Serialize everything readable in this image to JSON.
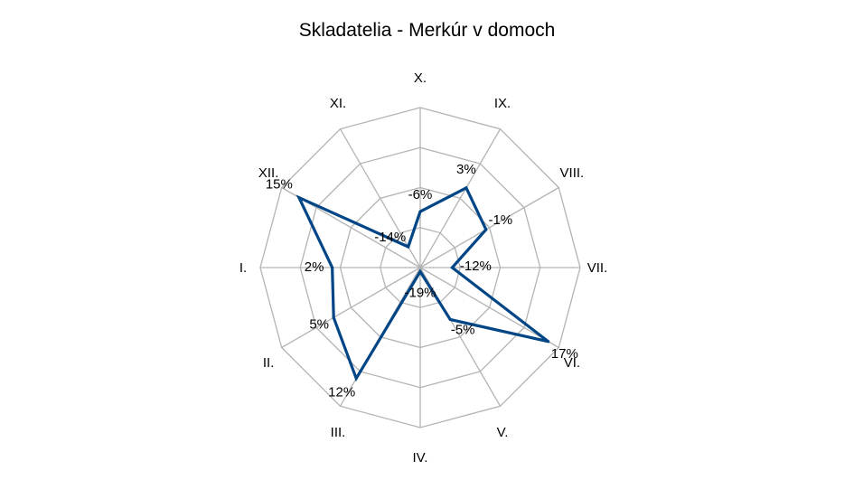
{
  "chart_data": {
    "type": "radar",
    "title": "Skladatelia - Merkúr v domoch",
    "categories": [
      "X.",
      "IX.",
      "VIII.",
      "VII.",
      "VI.",
      "V.",
      "IV.",
      "III.",
      "II.",
      "I.",
      "XII.",
      "XI."
    ],
    "series": [
      {
        "values": [
          -6,
          3,
          -1,
          -12,
          17,
          -5,
          -19,
          12,
          5,
          2,
          15,
          -14
        ],
        "labels": [
          "-6%",
          "3%",
          "-1%",
          "-12%",
          "17%",
          "-5%",
          "-19%",
          "12%",
          "5%",
          "2%",
          "15%",
          "-14%"
        ]
      }
    ],
    "rlim": [
      -20,
      20
    ],
    "grid": true,
    "line_color": "#004586",
    "grid_color": "#b3b3b3"
  }
}
